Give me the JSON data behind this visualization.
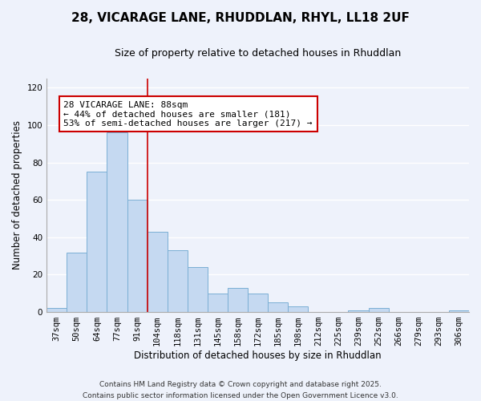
{
  "title": "28, VICARAGE LANE, RHUDDLAN, RHYL, LL18 2UF",
  "subtitle": "Size of property relative to detached houses in Rhuddlan",
  "xlabel": "Distribution of detached houses by size in Rhuddlan",
  "ylabel": "Number of detached properties",
  "bar_color": "#c5d9f1",
  "bar_edge_color": "#7bafd4",
  "categories": [
    "37sqm",
    "50sqm",
    "64sqm",
    "77sqm",
    "91sqm",
    "104sqm",
    "118sqm",
    "131sqm",
    "145sqm",
    "158sqm",
    "172sqm",
    "185sqm",
    "198sqm",
    "212sqm",
    "225sqm",
    "239sqm",
    "252sqm",
    "266sqm",
    "279sqm",
    "293sqm",
    "306sqm"
  ],
  "values": [
    2,
    32,
    75,
    96,
    60,
    43,
    33,
    24,
    10,
    13,
    10,
    5,
    3,
    0,
    0,
    1,
    2,
    0,
    0,
    0,
    1
  ],
  "vline_x": 4.5,
  "vline_color": "#cc0000",
  "annotation_text": "28 VICARAGE LANE: 88sqm\n← 44% of detached houses are smaller (181)\n53% of semi-detached houses are larger (217) →",
  "annotation_box_color": "#ffffff",
  "annotation_box_edge_color": "#cc0000",
  "ylim": [
    0,
    125
  ],
  "yticks": [
    0,
    20,
    40,
    60,
    80,
    100,
    120
  ],
  "footer_line1": "Contains HM Land Registry data © Crown copyright and database right 2025.",
  "footer_line2": "Contains public sector information licensed under the Open Government Licence v3.0.",
  "background_color": "#eef2fb",
  "grid_color": "#ffffff",
  "title_fontsize": 11,
  "subtitle_fontsize": 9,
  "axis_label_fontsize": 8.5,
  "tick_fontsize": 7.5,
  "annotation_fontsize": 8,
  "footer_fontsize": 6.5
}
